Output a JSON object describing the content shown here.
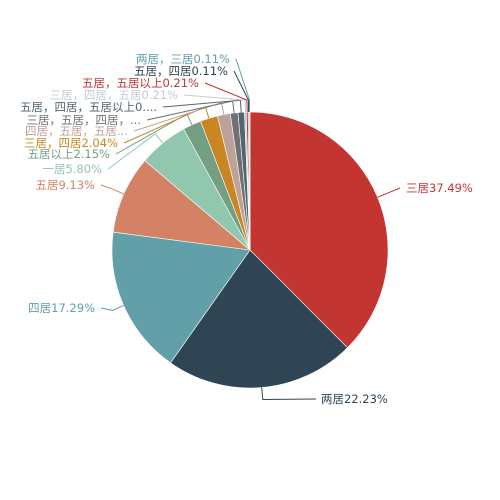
{
  "chart_data": {
    "type": "pie",
    "title": "",
    "series": [
      {
        "name": "",
        "data": [
          {
            "name": "三居",
            "value": 37.49,
            "label": "三居37.49%",
            "color": "#c23531"
          },
          {
            "name": "两居",
            "value": 22.23,
            "label": "两居22.23%",
            "color": "#2f4554"
          },
          {
            "name": "四居",
            "value": 17.29,
            "label": "四居17.29%",
            "color": "#61a0a8"
          },
          {
            "name": "五居",
            "value": 9.13,
            "label": "五居9.13%",
            "color": "#d48265"
          },
          {
            "name": "一居",
            "value": 5.8,
            "label": "一居5.80%",
            "color": "#91c7ae"
          },
          {
            "name": "五居以上",
            "value": 2.15,
            "label": "五居以上2.15%",
            "color": "#749f83"
          },
          {
            "name": "三居，四居",
            "value": 2.04,
            "label": "三居，四居2.04%",
            "color": "#ca8622"
          },
          {
            "name": "四居，五居，五居...",
            "value": 1.5,
            "label": "四居，五居，五居...",
            "color": "#bda29a"
          },
          {
            "name": "三居，五居，四居，...",
            "value": 0.9,
            "label": "三居，五居，四居，...",
            "color": "#6e7074"
          },
          {
            "name": "五居，四居，五居以上0....",
            "value": 0.75,
            "label": "五居，四居，五居以上0....",
            "color": "#546570"
          },
          {
            "name": "三居，四居，五居",
            "value": 0.21,
            "label": "三居，四居，五居0.21%",
            "color": "#c4ccd3"
          },
          {
            "name": "五居，五居以上",
            "value": 0.21,
            "label": "五居，五居以上0.21%",
            "color": "#c23531"
          },
          {
            "name": "五居，四居",
            "value": 0.11,
            "label": "五居，四居0.11%",
            "color": "#2f4554"
          },
          {
            "name": "两居，三居",
            "value": 0.11,
            "label": "两居，三居0.11%",
            "color": "#61a0a8"
          }
        ]
      }
    ]
  }
}
